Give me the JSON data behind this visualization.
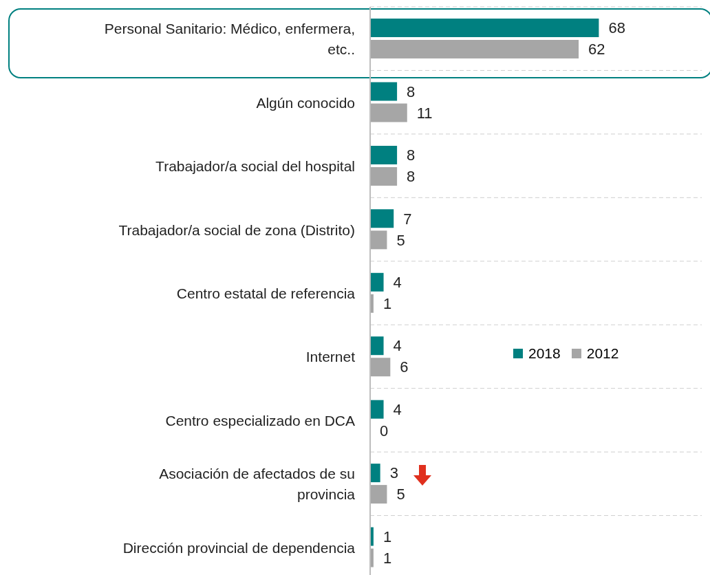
{
  "chart_data": {
    "type": "bar",
    "orientation": "horizontal",
    "categories": [
      "Personal Sanitario: Médico, enfermera, etc..",
      "Algún conocido",
      "Trabajador/a social del hospital",
      "Trabajador/a social de zona (Distrito)",
      "Centro estatal de referencia",
      "Internet",
      "Centro especializado en DCA",
      "Asociación de afectados de su provincia",
      "Dirección provincial de dependencia"
    ],
    "series": [
      {
        "name": "2018",
        "color": "#008080",
        "values": [
          68,
          8,
          8,
          7,
          4,
          4,
          4,
          3,
          1
        ]
      },
      {
        "name": "2012",
        "color": "#a6a6a6",
        "values": [
          62,
          11,
          8,
          5,
          1,
          6,
          0,
          5,
          1
        ]
      }
    ],
    "data_labels": true,
    "legend": "right",
    "grid": "y"
  }
}
